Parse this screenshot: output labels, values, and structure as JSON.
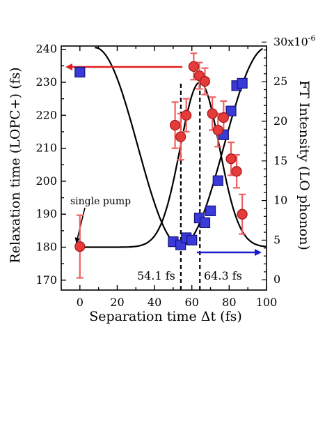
{
  "chart_data": {
    "type": "scatter",
    "xlabel": "Separation time Δt (fs)",
    "ylabel": "Relaxation time (LOPC+) (fs)",
    "y2label": "FT Intensity (LO phonon)",
    "xlim": [
      -10,
      100
    ],
    "ylim": [
      167,
      241
    ],
    "y2lim": [
      -1.3,
      29.5
    ],
    "xticks": [
      "0",
      "20",
      "40",
      "60",
      "80",
      "100"
    ],
    "yticks": [
      "170",
      "180",
      "190",
      "200",
      "210",
      "220",
      "230",
      "240"
    ],
    "y2ticks": [
      "0",
      "5",
      "10",
      "15",
      "20",
      "25",
      "30x10"
    ],
    "y2tick_exponent": "-6",
    "grid": false,
    "colors": {
      "relaxation_marker": "#e63b3b",
      "relaxation_error": "#f06060",
      "ft_marker": "#3a3ad8",
      "left_arrow": "#e02020",
      "right_arrow": "#1a1ad0"
    },
    "series": [
      {
        "axis": "left",
        "marker": "circle",
        "points": [
          {
            "x": 0,
            "y": 180.2,
            "err": 9.5
          },
          {
            "x": 51,
            "y": 217,
            "err": 7
          },
          {
            "x": 54,
            "y": 213.5,
            "err": 7
          },
          {
            "x": 57,
            "y": 220,
            "err": 5
          },
          {
            "x": 61,
            "y": 234.8,
            "err": 4
          },
          {
            "x": 64,
            "y": 232,
            "err": 4
          },
          {
            "x": 67,
            "y": 230.3,
            "err": 4
          },
          {
            "x": 71,
            "y": 220.5,
            "err": 5
          },
          {
            "x": 74,
            "y": 215.5,
            "err": 5
          },
          {
            "x": 77,
            "y": 219.3,
            "err": 5
          },
          {
            "x": 81,
            "y": 206.8,
            "err": 5
          },
          {
            "x": 84,
            "y": 203,
            "err": 5
          },
          {
            "x": 87,
            "y": 190,
            "err": 6
          }
        ]
      },
      {
        "axis": "right",
        "marker": "square",
        "points": [
          {
            "x": 0,
            "y": 26.2
          },
          {
            "x": 50,
            "y": 4.8
          },
          {
            "x": 54,
            "y": 4.4
          },
          {
            "x": 57,
            "y": 5.3
          },
          {
            "x": 60,
            "y": 5.0
          },
          {
            "x": 64,
            "y": 7.8
          },
          {
            "x": 67,
            "y": 7.2
          },
          {
            "x": 70,
            "y": 8.7
          },
          {
            "x": 74,
            "y": 12.5
          },
          {
            "x": 77,
            "y": 18.3
          },
          {
            "x": 81,
            "y": 21.3
          },
          {
            "x": 84,
            "y": 24.5
          },
          {
            "x": 87,
            "y": 24.8
          }
        ]
      }
    ],
    "fit_curves": [
      {
        "axis": "left",
        "shape": "gaussian",
        "baseline": 180,
        "amplitude": 50,
        "center": 64.3,
        "width": 10.5
      },
      {
        "axis": "right",
        "shape": "cosine",
        "period": 92,
        "minimum_at": 54.1,
        "min": 4.3,
        "max": 29.3
      }
    ],
    "annotations": {
      "single_pump": "single pump",
      "marker_a": "54.1 fs",
      "marker_b": "64.3 fs"
    },
    "dashed_lines_x": [
      54.1,
      64.3
    ]
  }
}
